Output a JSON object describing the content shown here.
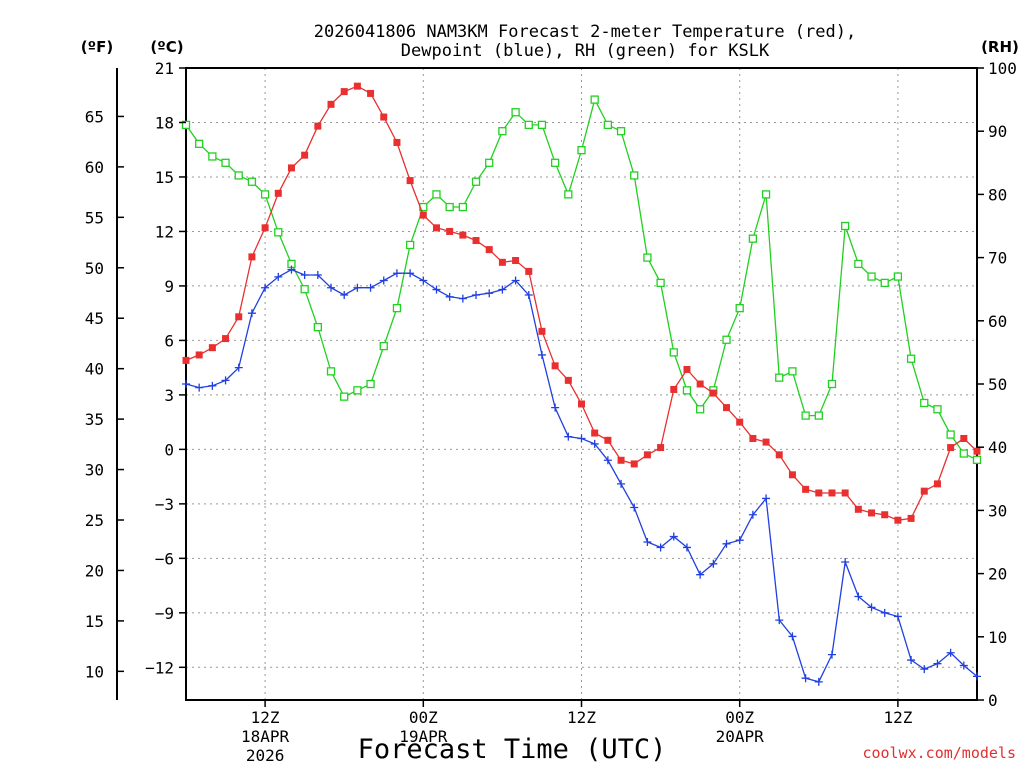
{
  "chart_data": {
    "type": "line",
    "title_line1": "2026041806 NAM3KM Forecast 2-meter Temperature (red),",
    "title_line2": "Dewpoint (blue), RH (green) for KSLK",
    "xlabel": "Forecast Time (UTC)",
    "left_outer_unit": "(ºF)",
    "left_inner_unit": "(ºC)",
    "right_unit": "(RH)",
    "watermark": "coolwx.com/models",
    "x_range_hours": [
      0,
      60
    ],
    "y_celsius_range": [
      -13.8,
      21
    ],
    "y_rh_range": [
      0,
      100
    ],
    "celsius_ticks": [
      "21",
      "18",
      "15",
      "12",
      "9",
      "6",
      "3",
      "0",
      "−3",
      "−6",
      "−9",
      "−12"
    ],
    "celsius_tick_values": [
      21,
      18,
      15,
      12,
      9,
      6,
      3,
      0,
      -3,
      -6,
      -9,
      -12
    ],
    "fahrenheit_ticks": [
      "65",
      "60",
      "55",
      "50",
      "45",
      "40",
      "35",
      "30",
      "25",
      "20",
      "15",
      "10"
    ],
    "fahrenheit_tick_values": [
      65,
      60,
      55,
      50,
      45,
      40,
      35,
      30,
      25,
      20,
      15,
      10
    ],
    "rh_ticks": [
      "100",
      "90",
      "80",
      "70",
      "60",
      "50",
      "40",
      "30",
      "20",
      "10",
      "0"
    ],
    "rh_tick_values": [
      100,
      90,
      80,
      70,
      60,
      50,
      40,
      30,
      20,
      10,
      0
    ],
    "x_ticks": [
      {
        "hour": 6,
        "label": "12Z",
        "date": "18APR",
        "year": "2026"
      },
      {
        "hour": 18,
        "label": "00Z",
        "date": "19APR",
        "year": ""
      },
      {
        "hour": 30,
        "label": "12Z",
        "date": "",
        "year": ""
      },
      {
        "hour": 42,
        "label": "00Z",
        "date": "20APR",
        "year": ""
      },
      {
        "hour": 54,
        "label": "12Z",
        "date": "",
        "year": ""
      }
    ],
    "series": [
      {
        "name": "Temperature",
        "unit": "C",
        "color": "#e83030",
        "marker": "filled-square",
        "values": [
          4.9,
          5.2,
          5.6,
          6.1,
          7.3,
          10.6,
          12.2,
          14.1,
          15.5,
          16.2,
          17.8,
          19.0,
          19.7,
          20.0,
          19.6,
          18.3,
          16.9,
          14.8,
          12.9,
          12.2,
          12.0,
          11.8,
          11.5,
          11.0,
          10.3,
          10.4,
          9.8,
          6.5,
          4.6,
          3.8,
          2.5,
          0.9,
          0.5,
          -0.6,
          -0.8,
          -0.3,
          0.1,
          3.3,
          4.4,
          3.6,
          3.1,
          2.3,
          1.5,
          0.6,
          0.4,
          -0.3,
          -1.4,
          -2.2,
          -2.4,
          -2.4,
          -2.4,
          -3.3,
          -3.5,
          -3.6,
          -3.9,
          -3.8,
          -2.3,
          -1.9,
          0.1,
          0.6,
          -0.1
        ]
      },
      {
        "name": "Dewpoint",
        "unit": "C",
        "color": "#2040e0",
        "marker": "plus",
        "values": [
          3.6,
          3.4,
          3.5,
          3.8,
          4.5,
          7.5,
          8.9,
          9.5,
          9.9,
          9.6,
          9.6,
          8.9,
          8.5,
          8.9,
          8.9,
          9.3,
          9.7,
          9.7,
          9.3,
          8.8,
          8.4,
          8.3,
          8.5,
          8.6,
          8.8,
          9.3,
          8.5,
          5.2,
          2.3,
          0.7,
          0.6,
          0.3,
          -0.6,
          -1.9,
          -3.2,
          -5.1,
          -5.4,
          -4.8,
          -5.4,
          -6.9,
          -6.3,
          -5.2,
          -5.0,
          -3.6,
          -2.7,
          -9.4,
          -10.3,
          -12.6,
          -12.8,
          -11.3,
          -6.2,
          -8.1,
          -8.7,
          -9.0,
          -9.2,
          -11.6,
          -12.1,
          -11.8,
          -11.2,
          -11.9,
          -12.5
        ]
      },
      {
        "name": "RH",
        "unit": "%",
        "color": "#22d022",
        "marker": "open-square",
        "values": [
          91,
          88,
          86,
          85,
          83,
          82,
          80,
          74,
          69,
          65,
          59,
          52,
          48,
          49,
          50,
          56,
          62,
          72,
          78,
          80,
          78,
          78,
          82,
          85,
          90,
          93,
          91,
          91,
          85,
          80,
          87,
          95,
          91,
          90,
          83,
          70,
          66,
          55,
          49,
          46,
          49,
          57,
          62,
          73,
          80,
          51,
          52,
          45,
          45,
          50,
          75,
          69,
          67,
          66,
          67,
          54,
          47,
          46,
          42,
          39,
          38
        ]
      }
    ]
  }
}
